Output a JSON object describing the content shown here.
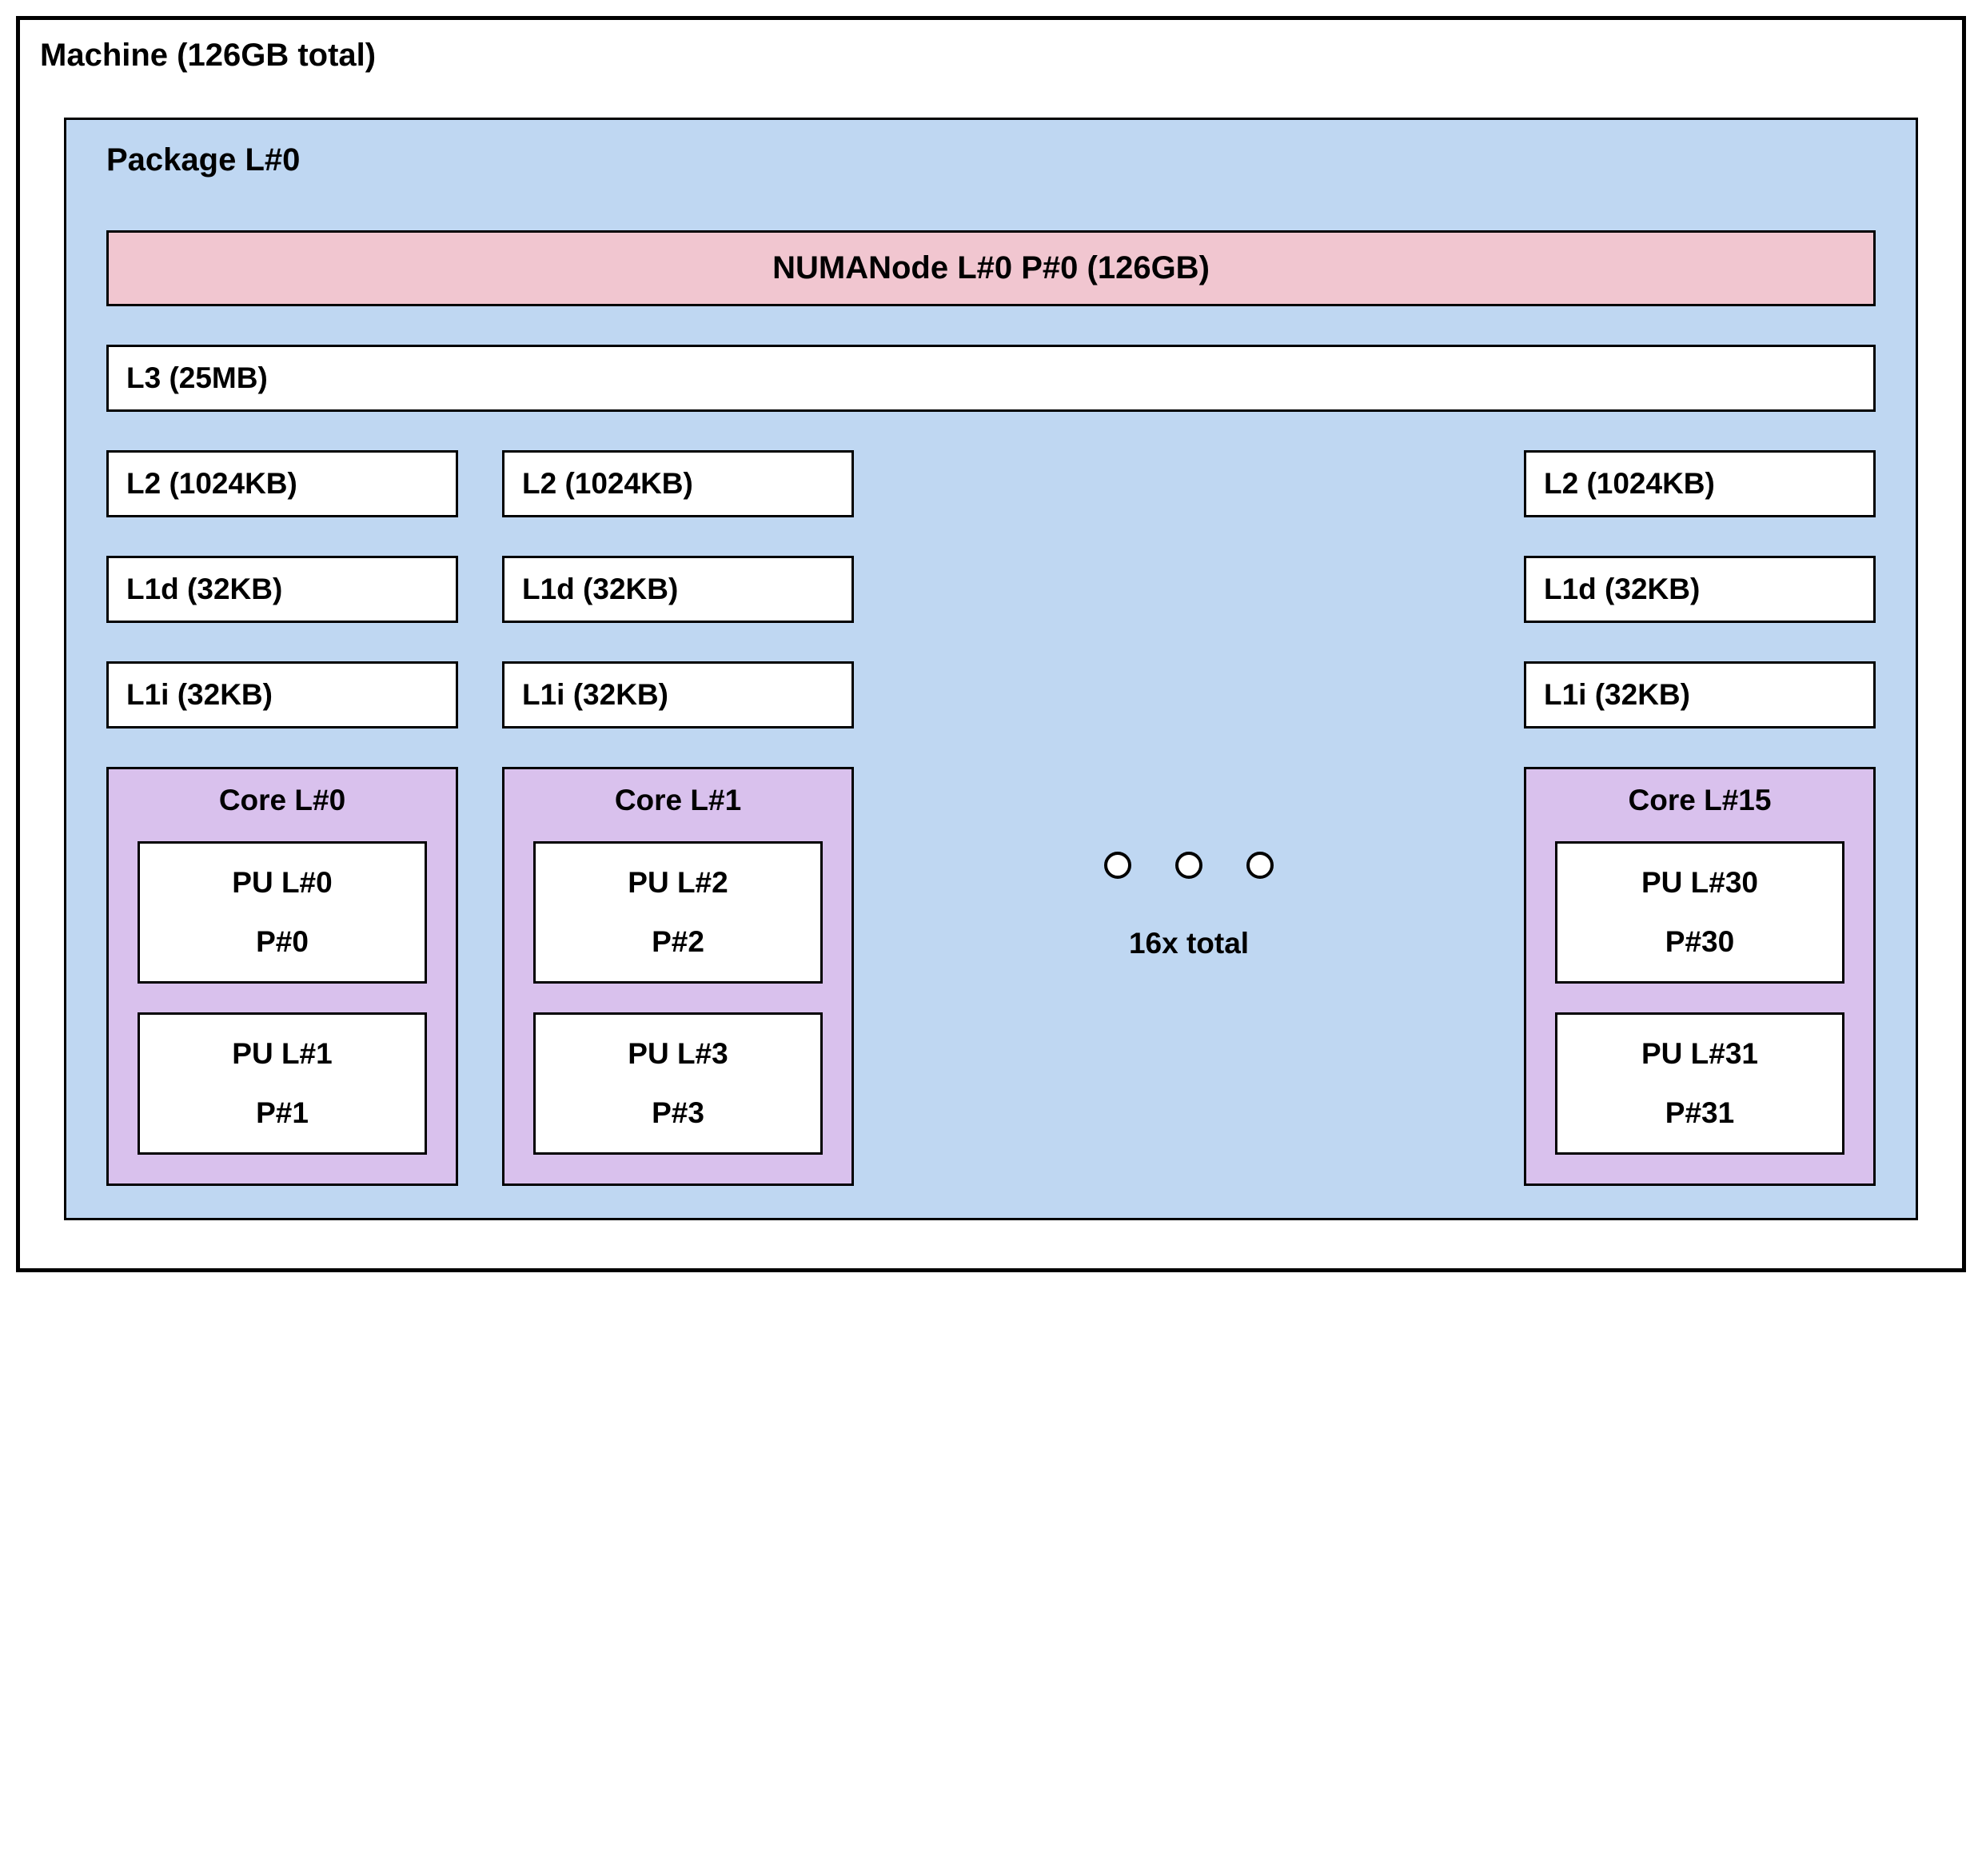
{
  "colors": {
    "package_bg": "#bfd7f2",
    "numa_bg": "#f1c6d0",
    "core_bg": "#d9c1ed",
    "white": "#ffffff",
    "border": "#000000"
  },
  "machine": {
    "title": "Machine (126GB total)"
  },
  "package": {
    "title": "Package L#0"
  },
  "numa": {
    "label": "NUMANode L#0 P#0 (126GB)"
  },
  "l3": {
    "label": "L3 (25MB)"
  },
  "spacer": {
    "total_label": "16x total"
  },
  "columns": [
    {
      "l2": "L2 (1024KB)",
      "l1d": "L1d (32KB)",
      "l1i": "L1i (32KB)",
      "core": "Core L#0",
      "pu0_line1": "PU L#0",
      "pu0_line2": "P#0",
      "pu1_line1": "PU L#1",
      "pu1_line2": "P#1"
    },
    {
      "l2": "L2 (1024KB)",
      "l1d": "L1d (32KB)",
      "l1i": "L1i (32KB)",
      "core": "Core L#1",
      "pu0_line1": "PU L#2",
      "pu0_line2": "P#2",
      "pu1_line1": "PU L#3",
      "pu1_line2": "P#3"
    },
    {
      "l2": "L2 (1024KB)",
      "l1d": "L1d (32KB)",
      "l1i": "L1i (32KB)",
      "core": "Core L#15",
      "pu0_line1": "PU L#30",
      "pu0_line2": "P#30",
      "pu1_line1": "PU L#31",
      "pu1_line2": "P#31"
    }
  ]
}
